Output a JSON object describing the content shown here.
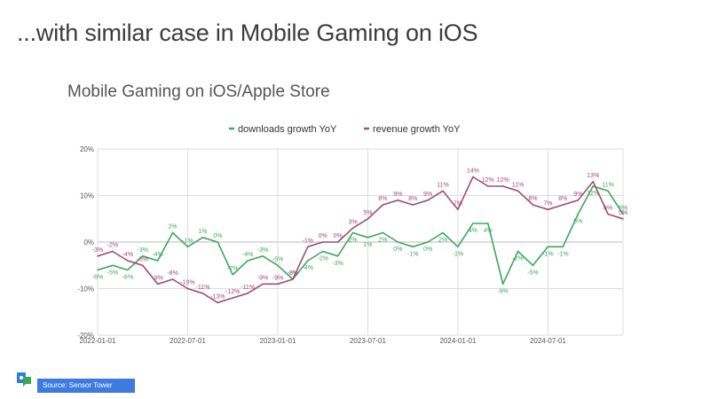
{
  "slide": {
    "title": "...with similar case in Mobile Gaming on iOS",
    "source": "Source: Sensor Tower"
  },
  "chart_data": {
    "type": "line",
    "title": "Mobile Gaming on iOS/Apple Store",
    "xlabel": "",
    "ylabel": "",
    "ylim": [
      -20,
      20
    ],
    "yticks": [
      "20%",
      "10%",
      "0%",
      "-10%",
      "-20%"
    ],
    "ytick_values": [
      20,
      10,
      0,
      -10,
      -20
    ],
    "xticks": [
      "2022-01-01",
      "2022-07-01",
      "2023-01-01",
      "2023-07-01",
      "2024-01-01",
      "2024-07-01"
    ],
    "xtick_index": [
      0,
      6,
      12,
      18,
      24,
      30
    ],
    "legend_position": "top-center",
    "colors": {
      "downloads": "#3da85a",
      "revenue": "#a04d72",
      "grid": "#dddddd",
      "axis": "#888888"
    },
    "x": [
      "2022-01",
      "2022-02",
      "2022-03",
      "2022-04",
      "2022-05",
      "2022-06",
      "2022-07",
      "2022-08",
      "2022-09",
      "2022-10",
      "2022-11",
      "2022-12",
      "2023-01",
      "2023-02",
      "2023-03",
      "2023-04",
      "2023-05",
      "2023-06",
      "2023-07",
      "2023-08",
      "2023-09",
      "2023-10",
      "2023-11",
      "2023-12",
      "2024-01",
      "2024-02",
      "2024-03",
      "2024-04",
      "2024-05",
      "2024-06",
      "2024-07",
      "2024-08",
      "2024-09",
      "2024-10",
      "2024-11",
      "2024-12"
    ],
    "series": [
      {
        "name": "downloads growth YoY",
        "values": [
          -6,
          -5,
          -6,
          -3,
          -4,
          2,
          -1,
          1,
          0,
          -7,
          -4,
          -3,
          -5,
          -8,
          -4,
          -2,
          -3,
          2,
          1,
          2,
          0,
          -1,
          0,
          2,
          -1,
          4,
          4,
          -9,
          -2,
          -5,
          -1,
          -1,
          6,
          12,
          11,
          6
        ],
        "labels": [
          "-6%",
          "-5%",
          "-6%",
          "-3%",
          "-4%",
          "2%",
          "-1%",
          "1%",
          "0%",
          "-7%",
          "-4%",
          "-3%",
          "-5%",
          "-8%",
          "-4%",
          "-2%",
          "-3%",
          "2%",
          "1%",
          "2%",
          "0%",
          "-1%",
          "0%",
          "2%",
          "-1%",
          "4%",
          "4%",
          "-9%",
          "-2%",
          "-5%",
          "-1%",
          "-1%",
          "6%",
          "12%",
          "11%",
          "6%"
        ]
      },
      {
        "name": "revenue growth YoY",
        "values": [
          -3,
          -2,
          -4,
          -5,
          -9,
          -8,
          -10,
          -11,
          -13,
          -12,
          -11,
          -9,
          -9,
          -8,
          -1,
          0,
          0,
          3,
          5,
          8,
          9,
          8,
          9,
          11,
          7,
          14,
          12,
          12,
          11,
          8,
          7,
          8,
          9,
          13,
          6,
          5
        ],
        "labels": [
          "-3%",
          "-2%",
          "-4%",
          "-5%",
          "-9%",
          "-8%",
          "-10%",
          "-11%",
          "-13%",
          "-12%",
          "-11%",
          "-9%",
          "-9%",
          "-8%",
          "-1%",
          "0%",
          "0%",
          "3%",
          "5%",
          "8%",
          "9%",
          "8%",
          "9%",
          "11%",
          "7%",
          "14%",
          "12%",
          "12%",
          "11%",
          "8%",
          "7%",
          "8%",
          "9%",
          "13%",
          "6%",
          "5%"
        ]
      }
    ]
  }
}
